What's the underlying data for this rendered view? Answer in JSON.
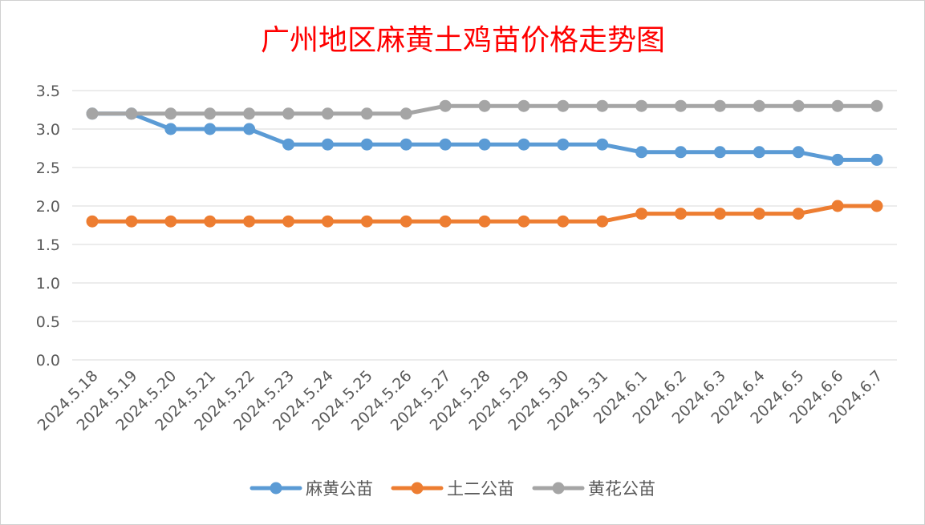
{
  "chart_data": {
    "type": "line",
    "title": "广州地区麻黄土鸡苗价格走势图",
    "title_color": "#ff0000",
    "categories": [
      "2024.5.18",
      "2024.5.19",
      "2024.5.20",
      "2024.5.21",
      "2024.5.22",
      "2024.5.23",
      "2024.5.24",
      "2024.5.25",
      "2024.5.26",
      "2024.5.27",
      "2024.5.28",
      "2024.5.29",
      "2024.5.30",
      "2024.5.31",
      "2024.6.1",
      "2024.6.2",
      "2024.6.3",
      "2024.6.4",
      "2024.6.5",
      "2024.6.6",
      "2024.6.7"
    ],
    "series": [
      {
        "name": "麻黄公苗",
        "color": "#5b9bd5",
        "values": [
          3.2,
          3.2,
          3.0,
          3.0,
          3.0,
          2.8,
          2.8,
          2.8,
          2.8,
          2.8,
          2.8,
          2.8,
          2.8,
          2.8,
          2.7,
          2.7,
          2.7,
          2.7,
          2.7,
          2.6,
          2.6
        ]
      },
      {
        "name": "土二公苗",
        "color": "#ed7d31",
        "values": [
          1.8,
          1.8,
          1.8,
          1.8,
          1.8,
          1.8,
          1.8,
          1.8,
          1.8,
          1.8,
          1.8,
          1.8,
          1.8,
          1.8,
          1.9,
          1.9,
          1.9,
          1.9,
          1.9,
          2.0,
          2.0
        ]
      },
      {
        "name": "黄花公苗",
        "color": "#a5a5a5",
        "values": [
          3.2,
          3.2,
          3.2,
          3.2,
          3.2,
          3.2,
          3.2,
          3.2,
          3.2,
          3.3,
          3.3,
          3.3,
          3.3,
          3.3,
          3.3,
          3.3,
          3.3,
          3.3,
          3.3,
          3.3,
          3.3
        ]
      }
    ],
    "y_ticks": [
      "0.0",
      "0.5",
      "1.0",
      "1.5",
      "2.0",
      "2.5",
      "3.0",
      "3.5"
    ],
    "ylim": [
      0,
      3.5
    ],
    "grid": true,
    "legend_position": "bottom"
  }
}
